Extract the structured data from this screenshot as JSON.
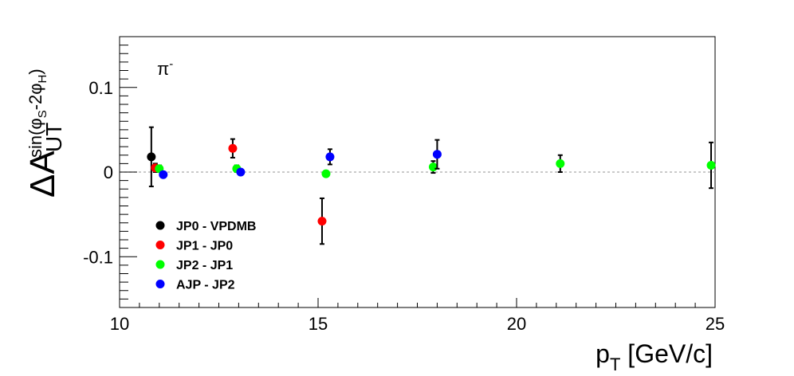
{
  "chart_data": {
    "type": "scatter",
    "annotation": {
      "base": "π",
      "sup": "-"
    },
    "xlabel": {
      "base": "p",
      "sub": "T",
      "rest": " [GeV/c]"
    },
    "ylabel": {
      "delta": "Δ",
      "base": "A",
      "sub": "UT",
      "sup": "sin(φ",
      "sup_sub1": "S",
      "sup_mid": "-2φ",
      "sup_sub2": "H",
      "sup_end": ")"
    },
    "xlim": [
      10,
      25
    ],
    "ylim": [
      -0.16,
      0.16
    ],
    "x_ticks": [
      10,
      15,
      20,
      25
    ],
    "x_tick_labels": [
      "10",
      "15",
      "20",
      "25"
    ],
    "y_ticks": [
      -0.1,
      0,
      0.1
    ],
    "y_tick_labels": [
      "-0.1",
      "0",
      "0.1"
    ],
    "reference_line_y": 0,
    "grid": false,
    "legend_position": "bottom-left",
    "series": [
      {
        "name": "JP0 - VPDMB",
        "color": "#000000",
        "points": [
          {
            "x": 10.8,
            "y": 0.018,
            "err": 0.035
          }
        ]
      },
      {
        "name": "JP1 - JP0",
        "color": "#ff0000",
        "points": [
          {
            "x": 10.9,
            "y": 0.005,
            "err": 0.005
          },
          {
            "x": 12.85,
            "y": 0.028,
            "err": 0.011
          },
          {
            "x": 15.1,
            "y": -0.058,
            "err": 0.027
          }
        ]
      },
      {
        "name": "JP2 - JP1",
        "color": "#00ff00",
        "points": [
          {
            "x": 11.0,
            "y": 0.004,
            "err": 0.004
          },
          {
            "x": 12.95,
            "y": 0.004,
            "err": 0.004
          },
          {
            "x": 15.2,
            "y": -0.002,
            "err": 0.003
          },
          {
            "x": 17.9,
            "y": 0.006,
            "err": 0.007
          },
          {
            "x": 21.1,
            "y": 0.01,
            "err": 0.01
          },
          {
            "x": 24.9,
            "y": 0.008,
            "err": 0.027
          }
        ]
      },
      {
        "name": "AJP - JP2",
        "color": "#0000ff",
        "points": [
          {
            "x": 11.1,
            "y": -0.003,
            "err": 0.002
          },
          {
            "x": 13.05,
            "y": 0.0,
            "err": 0.002
          },
          {
            "x": 15.3,
            "y": 0.018,
            "err": 0.009
          },
          {
            "x": 18.0,
            "y": 0.021,
            "err": 0.017
          }
        ]
      }
    ]
  }
}
